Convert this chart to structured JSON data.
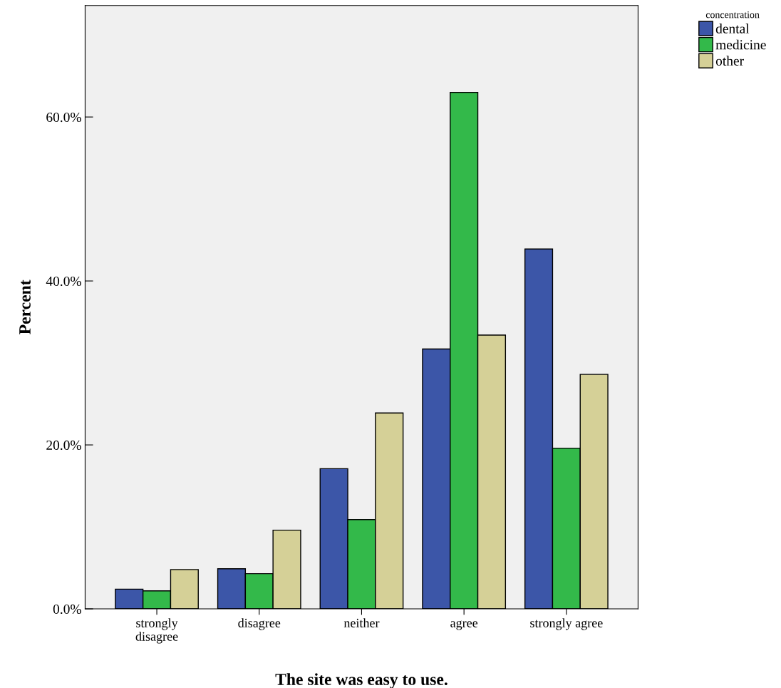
{
  "chart_data": {
    "type": "bar",
    "categories": [
      "strongly\ndisagree",
      "disagree",
      "neither",
      "agree",
      "strongly agree"
    ],
    "series": [
      {
        "name": "dental",
        "color": "#3c56a8",
        "values": [
          2.4,
          4.9,
          17.1,
          31.7,
          43.9
        ]
      },
      {
        "name": "medicine",
        "color": "#33b94a",
        "values": [
          2.2,
          4.3,
          10.9,
          63.0,
          19.6
        ]
      },
      {
        "name": "other",
        "color": "#d5d097",
        "values": [
          4.8,
          9.6,
          23.9,
          33.4,
          28.6
        ]
      }
    ],
    "xlabel": "The site was easy to use.",
    "ylabel": "Percent",
    "legend_title": "concentration",
    "ylim": [
      0,
      73.6
    ],
    "yticks": [
      {
        "value": 0,
        "label": "0.0%"
      },
      {
        "value": 20,
        "label": "20.0%"
      },
      {
        "value": 40,
        "label": "40.0%"
      },
      {
        "value": 60,
        "label": "60.0%"
      }
    ],
    "grid": false,
    "legend": "top right"
  }
}
